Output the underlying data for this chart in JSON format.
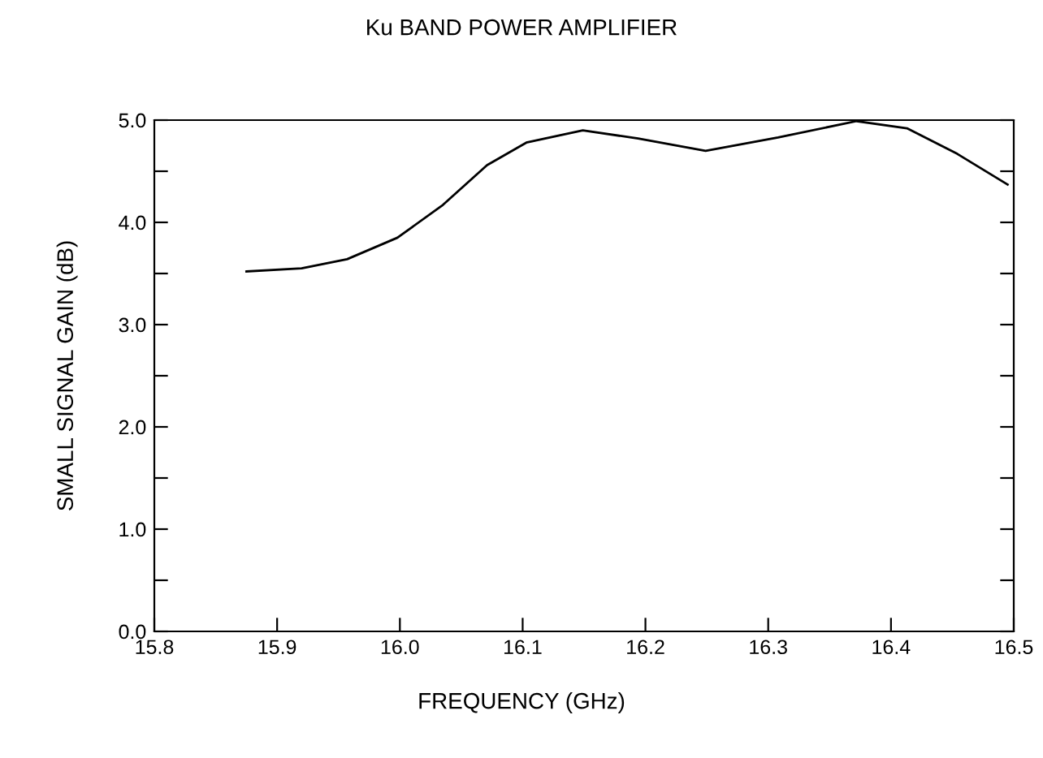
{
  "chart_data": {
    "type": "line",
    "title": "Ku BAND POWER AMPLIFIER",
    "xlabel": "FREQUENCY (GHz)",
    "ylabel": "SMALL SIGNAL GAIN (dB)",
    "series": [
      {
        "color": "#000000",
        "x": [
          15.875,
          15.92,
          15.957,
          15.998,
          16.035,
          16.071,
          16.103,
          16.149,
          16.194,
          16.249,
          16.308,
          16.372,
          16.413,
          16.454,
          16.495
        ],
        "values": [
          3.52,
          3.55,
          3.64,
          3.85,
          4.17,
          4.56,
          4.78,
          4.9,
          4.82,
          4.7,
          4.83,
          4.99,
          4.92,
          4.67,
          4.37
        ]
      }
    ],
    "xlim": [
      15.8,
      16.5
    ],
    "ylim": [
      0,
      5
    ],
    "xticks": [
      {
        "value": 15.8,
        "label": "15.8"
      },
      {
        "value": 15.9,
        "label": "15.9"
      },
      {
        "value": 16.0,
        "label": "16.0"
      },
      {
        "value": 16.1,
        "label": "16.1"
      },
      {
        "value": 16.2,
        "label": "16.2"
      },
      {
        "value": 16.3,
        "label": "16.3"
      },
      {
        "value": 16.4,
        "label": "16.4"
      },
      {
        "value": 16.5,
        "label": "16.5"
      }
    ],
    "yticks": [
      {
        "value": 0,
        "label": "0.0"
      },
      {
        "value": 0.5,
        "label": null
      },
      {
        "value": 1,
        "label": "1.0"
      },
      {
        "value": 1.5,
        "label": null
      },
      {
        "value": 2,
        "label": "2.0"
      },
      {
        "value": 2.5,
        "label": null
      },
      {
        "value": 3,
        "label": "3.0"
      },
      {
        "value": 3.5,
        "label": null
      },
      {
        "value": 4,
        "label": "4.0"
      },
      {
        "value": 4.5,
        "label": null
      },
      {
        "value": 5,
        "label": "5.0"
      }
    ],
    "grid": false,
    "legend": false,
    "marker": "none",
    "line_style": "solid"
  }
}
